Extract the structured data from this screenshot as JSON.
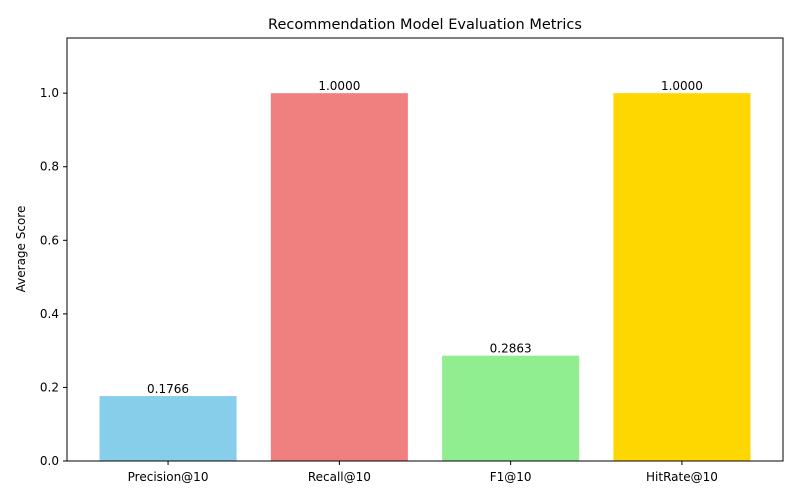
{
  "chart_data": {
    "type": "bar",
    "title": "Recommendation Model Evaluation Metrics",
    "xlabel": "",
    "ylabel": "Average Score",
    "categories": [
      "Precision@10",
      "Recall@10",
      "F1@10",
      "HitRate@10"
    ],
    "values": [
      0.1766,
      1.0,
      0.2863,
      1.0
    ],
    "data_labels": [
      "0.1766",
      "1.0000",
      "0.2863",
      "1.0000"
    ],
    "colors": [
      "#87ceeb",
      "#f08080",
      "#90ee90",
      "#ffd700"
    ],
    "ylim": [
      0,
      1.15
    ],
    "yticks": [
      0.0,
      0.2,
      0.4,
      0.6,
      0.8,
      1.0
    ],
    "ytick_labels": [
      "0.0",
      "0.2",
      "0.4",
      "0.6",
      "0.8",
      "1.0"
    ],
    "grid": false,
    "legend": "none"
  }
}
